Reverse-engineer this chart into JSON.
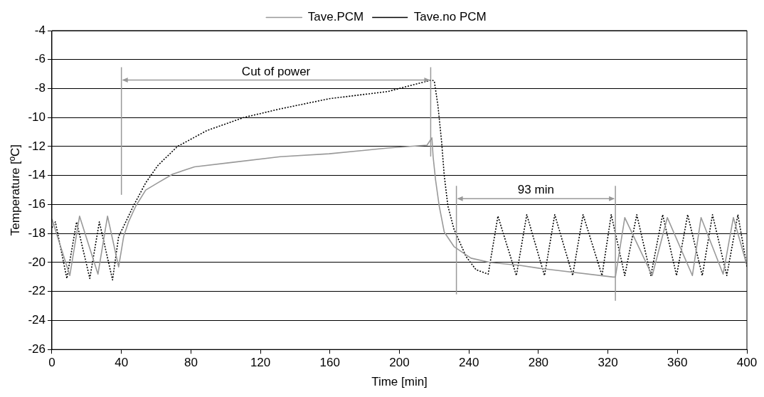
{
  "chart_data": {
    "type": "line",
    "xlabel": "Time [min]",
    "ylabel": "Temperature [ºC]",
    "series": [
      {
        "name": "Tave.PCM",
        "color": "#999999",
        "line_style": "solid",
        "x": [
          0,
          10.3,
          15.9,
          26.5,
          32,
          38.4,
          41.3,
          44.1,
          48.3,
          54,
          61,
          69.5,
          82.1,
          103.3,
          131.4,
          159.6,
          193.4,
          215.9,
          218.7,
          219.4,
          220.8,
          222.9,
          225.8,
          231.4,
          241.2,
          252.5,
          269.4,
          280.7,
          322.9,
          324.3,
          329.7,
          345.5,
          354.2,
          368.6,
          373.6,
          386.3,
          392.2,
          400
        ],
        "values": [
          -17,
          -20.9,
          -16.8,
          -20.8,
          -16.8,
          -20.3,
          -18.2,
          -17.2,
          -16.1,
          -15,
          -14.5,
          -13.9,
          -13.4,
          -13.1,
          -12.7,
          -12.5,
          -12.1,
          -11.9,
          -11.4,
          -12.7,
          -14.3,
          -16.1,
          -17.9,
          -18.9,
          -19.7,
          -20,
          -20.2,
          -20.4,
          -21,
          -21,
          -16.9,
          -20.9,
          -16.9,
          -20.9,
          -16.9,
          -20.8,
          -16.9,
          -20.2
        ]
      },
      {
        "name": "Tave.no PCM",
        "color": "#000000",
        "line_style": "dotted",
        "x": [
          0,
          2,
          8.6,
          14.2,
          21.8,
          27.3,
          34.9,
          38.4,
          41.3,
          46.9,
          54,
          61,
          72.2,
          89.1,
          110.3,
          131.4,
          159.6,
          193.4,
          218.7,
          220.1,
          222.2,
          224.3,
          225.8,
          227.9,
          231.4,
          238.4,
          244.1,
          251.1,
          256.7,
          267.3,
          273.3,
          283.5,
          289.4,
          299.7,
          305.7,
          316.6,
          321.9,
          329.7,
          336.6,
          344.7,
          351.5,
          359.5,
          365.9,
          374.3,
          380.2,
          388.4,
          394.8,
          400
        ],
        "values": [
          -17.6,
          -17.2,
          -21.1,
          -17.2,
          -21.1,
          -17.2,
          -21.2,
          -18.2,
          -17.5,
          -16.1,
          -14.5,
          -13.3,
          -12,
          -10.9,
          -10,
          -9.4,
          -8.7,
          -8.2,
          -7.4,
          -7.5,
          -9.2,
          -11.7,
          -14,
          -16.1,
          -17.7,
          -19.6,
          -20.5,
          -20.8,
          -16.8,
          -20.9,
          -16.7,
          -20.9,
          -16.7,
          -20.9,
          -16.7,
          -20.9,
          -16.7,
          -20.9,
          -16.7,
          -20.9,
          -16.7,
          -20.9,
          -16.7,
          -20.9,
          -16.7,
          -20.9,
          -16.7,
          -20.3
        ]
      }
    ],
    "xlim": [
      0,
      400
    ],
    "xticks": [
      0,
      40,
      80,
      120,
      160,
      200,
      240,
      280,
      320,
      360,
      400
    ],
    "ylim": [
      -26,
      -4
    ],
    "yticks": [
      -26,
      -24,
      -22,
      -20,
      -18,
      -16,
      -14,
      -12,
      -10,
      -8,
      -6,
      -4
    ],
    "grid": "y",
    "legend": "top",
    "marker": "none",
    "ref_lines": [
      {
        "axis": "x",
        "value": 40,
        "color": "#999999"
      },
      {
        "axis": "x",
        "value": 218,
        "color": "#999999"
      },
      {
        "axis": "x",
        "value": 232.8,
        "color": "#999999"
      },
      {
        "axis": "x",
        "value": 324.3,
        "color": "#999999"
      }
    ],
    "annotations": [
      "Cut of power",
      "93 min"
    ]
  }
}
